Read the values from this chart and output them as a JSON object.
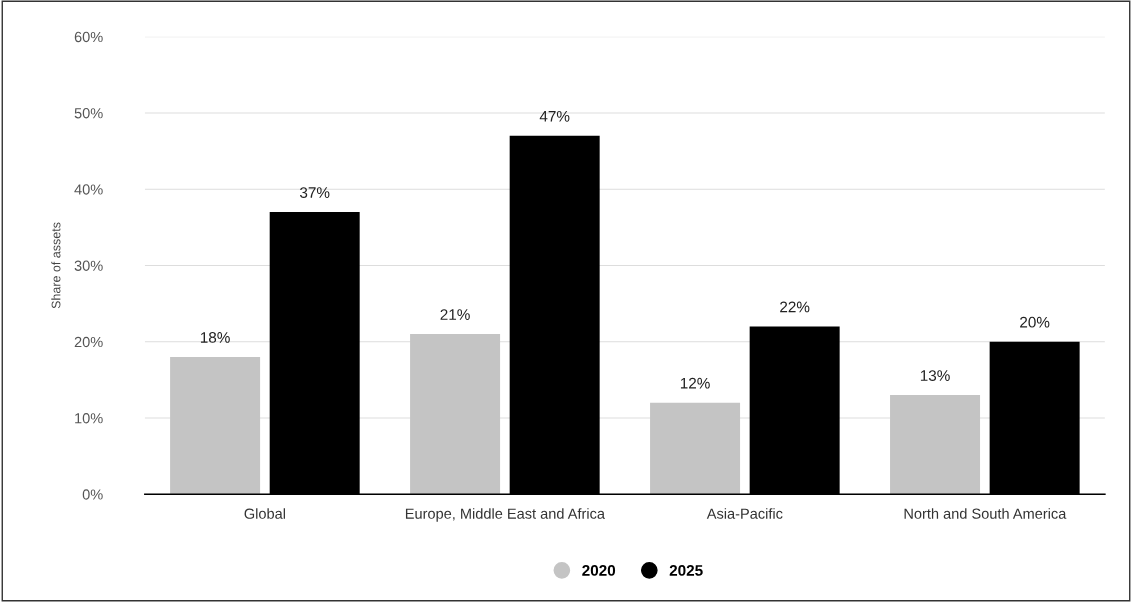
{
  "chart_data": {
    "type": "bar",
    "ylabel": "Share of assets",
    "categories": [
      "Global",
      "Europe, Middle East and Africa",
      "Asia-Pacific",
      "North and South America"
    ],
    "series": [
      {
        "name": "2020",
        "color": "#c4c4c4",
        "values": [
          18,
          21,
          12,
          13
        ]
      },
      {
        "name": "2025",
        "color": "#000000",
        "values": [
          37,
          47,
          22,
          20
        ]
      }
    ],
    "ylim": [
      0,
      60
    ],
    "yticks": [
      {
        "value": 0,
        "label": "0%"
      },
      {
        "value": 10,
        "label": "10%"
      },
      {
        "value": 20,
        "label": "20%"
      },
      {
        "value": 30,
        "label": "30%"
      },
      {
        "value": 40,
        "label": "40%"
      },
      {
        "value": 50,
        "label": "50%"
      },
      {
        "value": 60,
        "label": "60%"
      }
    ],
    "value_labels": [
      [
        "18%",
        "21%",
        "12%",
        "13%"
      ],
      [
        "37%",
        "47%",
        "22%",
        "20%"
      ]
    ],
    "grid": "y",
    "legend": "bottom"
  }
}
